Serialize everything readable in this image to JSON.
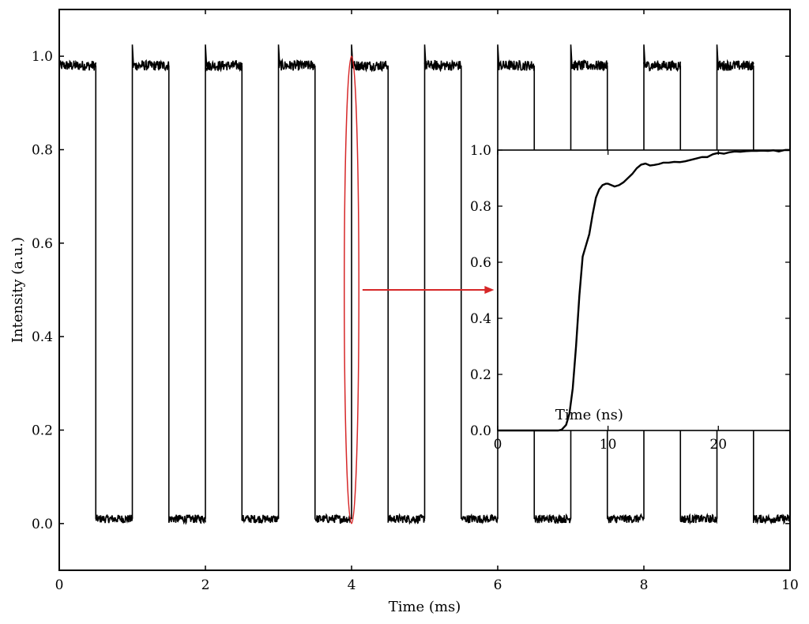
{
  "chart_data": [
    {
      "type": "line",
      "title": "",
      "xlabel": "Time (ms)",
      "ylabel": "Intensity (a.u.)",
      "xlim": [
        0,
        10
      ],
      "ylim": [
        -0.1,
        1.1
      ],
      "xticks": [
        0,
        2,
        4,
        6,
        8,
        10
      ],
      "yticks": [
        0.0,
        0.2,
        0.4,
        0.6,
        0.8,
        1.0
      ],
      "xtick_labels": [
        "0",
        "2",
        "4",
        "6",
        "8",
        "10"
      ],
      "ytick_labels": [
        "0.0",
        "0.2",
        "0.4",
        "0.6",
        "0.8",
        "1.0"
      ],
      "grid": false,
      "series": [
        {
          "color": "#000000",
          "description": "square wave, period 1 ms, 50% duty cycle, high level ~0.98 with small noise, low level ~0.01 with noise",
          "segments": [
            {
              "x_start": 0.0,
              "x_end": 0.5,
              "level": 0.98
            },
            {
              "x_start": 0.5,
              "x_end": 1.0,
              "level": 0.01
            },
            {
              "x_start": 1.0,
              "x_end": 1.5,
              "level": 0.98
            },
            {
              "x_start": 1.5,
              "x_end": 2.0,
              "level": 0.01
            },
            {
              "x_start": 2.0,
              "x_end": 2.5,
              "level": 0.98
            },
            {
              "x_start": 2.5,
              "x_end": 3.0,
              "level": 0.01
            },
            {
              "x_start": 3.0,
              "x_end": 3.5,
              "level": 0.98
            },
            {
              "x_start": 3.5,
              "x_end": 4.0,
              "level": 0.01
            },
            {
              "x_start": 4.0,
              "x_end": 4.5,
              "level": 0.98
            },
            {
              "x_start": 4.5,
              "x_end": 5.0,
              "level": 0.01
            },
            {
              "x_start": 5.0,
              "x_end": 5.5,
              "level": 0.98
            },
            {
              "x_start": 5.5,
              "x_end": 6.0,
              "level": 0.01
            },
            {
              "x_start": 6.0,
              "x_end": 6.5,
              "level": 0.98
            },
            {
              "x_start": 6.5,
              "x_end": 7.0,
              "level": 0.01
            },
            {
              "x_start": 7.0,
              "x_end": 7.5,
              "level": 0.98
            },
            {
              "x_start": 7.5,
              "x_end": 8.0,
              "level": 0.01
            },
            {
              "x_start": 8.0,
              "x_end": 8.5,
              "level": 0.98
            },
            {
              "x_start": 8.5,
              "x_end": 9.0,
              "level": 0.01
            },
            {
              "x_start": 9.0,
              "x_end": 9.5,
              "level": 0.98
            },
            {
              "x_start": 9.5,
              "x_end": 10.0,
              "level": 0.01
            }
          ]
        }
      ],
      "annotation": {
        "ellipse_center_x": 4.0,
        "ellipse_x_halfwidth": 0.1,
        "ellipse_y_range": [
          0.0,
          1.0
        ],
        "arrow_from_x": 4.15,
        "arrow_to_x": 5.95,
        "arrow_y": 0.5,
        "color": "#d62728"
      }
    },
    {
      "type": "line",
      "title": "",
      "xlabel": "Time (ns)",
      "ylabel": "",
      "xlim": [
        0,
        26.5
      ],
      "ylim": [
        0,
        1.0
      ],
      "xticks": [
        0,
        10,
        20
      ],
      "yticks": [
        0.0,
        0.2,
        0.4,
        0.6,
        0.8,
        1.0
      ],
      "xtick_labels": [
        "0",
        "10",
        "20"
      ],
      "ytick_labels": [
        "0.0",
        "0.2",
        "0.4",
        "0.6",
        "0.8",
        "1.0"
      ],
      "grid": false,
      "series": [
        {
          "color": "#000000",
          "x": [
            0,
            2,
            4,
            5.5,
            5.8,
            6.2,
            6.5,
            6.8,
            7.1,
            7.4,
            7.7,
            8.0,
            8.3,
            8.6,
            8.9,
            9.2,
            9.5,
            9.8,
            10.0,
            10.3,
            10.6,
            11.0,
            11.4,
            11.8,
            12.2,
            12.6,
            13.0,
            13.4,
            13.8,
            14.2,
            14.6,
            15.0,
            15.5,
            16.0,
            16.5,
            17.0,
            17.5,
            18.0,
            18.5,
            19.0,
            19.5,
            20.0,
            20.5,
            21.0,
            21.5,
            22.0,
            22.5,
            23.0,
            23.5,
            24.0,
            24.5,
            25.0,
            25.5,
            26.0,
            26.5
          ],
          "y": [
            0.0,
            0.0,
            0.0,
            0.0,
            0.003,
            0.02,
            0.06,
            0.15,
            0.3,
            0.48,
            0.62,
            0.66,
            0.7,
            0.77,
            0.83,
            0.86,
            0.875,
            0.88,
            0.88,
            0.875,
            0.87,
            0.875,
            0.885,
            0.9,
            0.915,
            0.935,
            0.948,
            0.952,
            0.945,
            0.947,
            0.95,
            0.955,
            0.955,
            0.958,
            0.957,
            0.96,
            0.965,
            0.97,
            0.975,
            0.975,
            0.985,
            0.99,
            0.987,
            0.992,
            0.995,
            0.994,
            0.996,
            0.997,
            0.997,
            0.998,
            0.997,
            0.999,
            0.995,
            1.0,
            1.0
          ]
        }
      ]
    }
  ]
}
